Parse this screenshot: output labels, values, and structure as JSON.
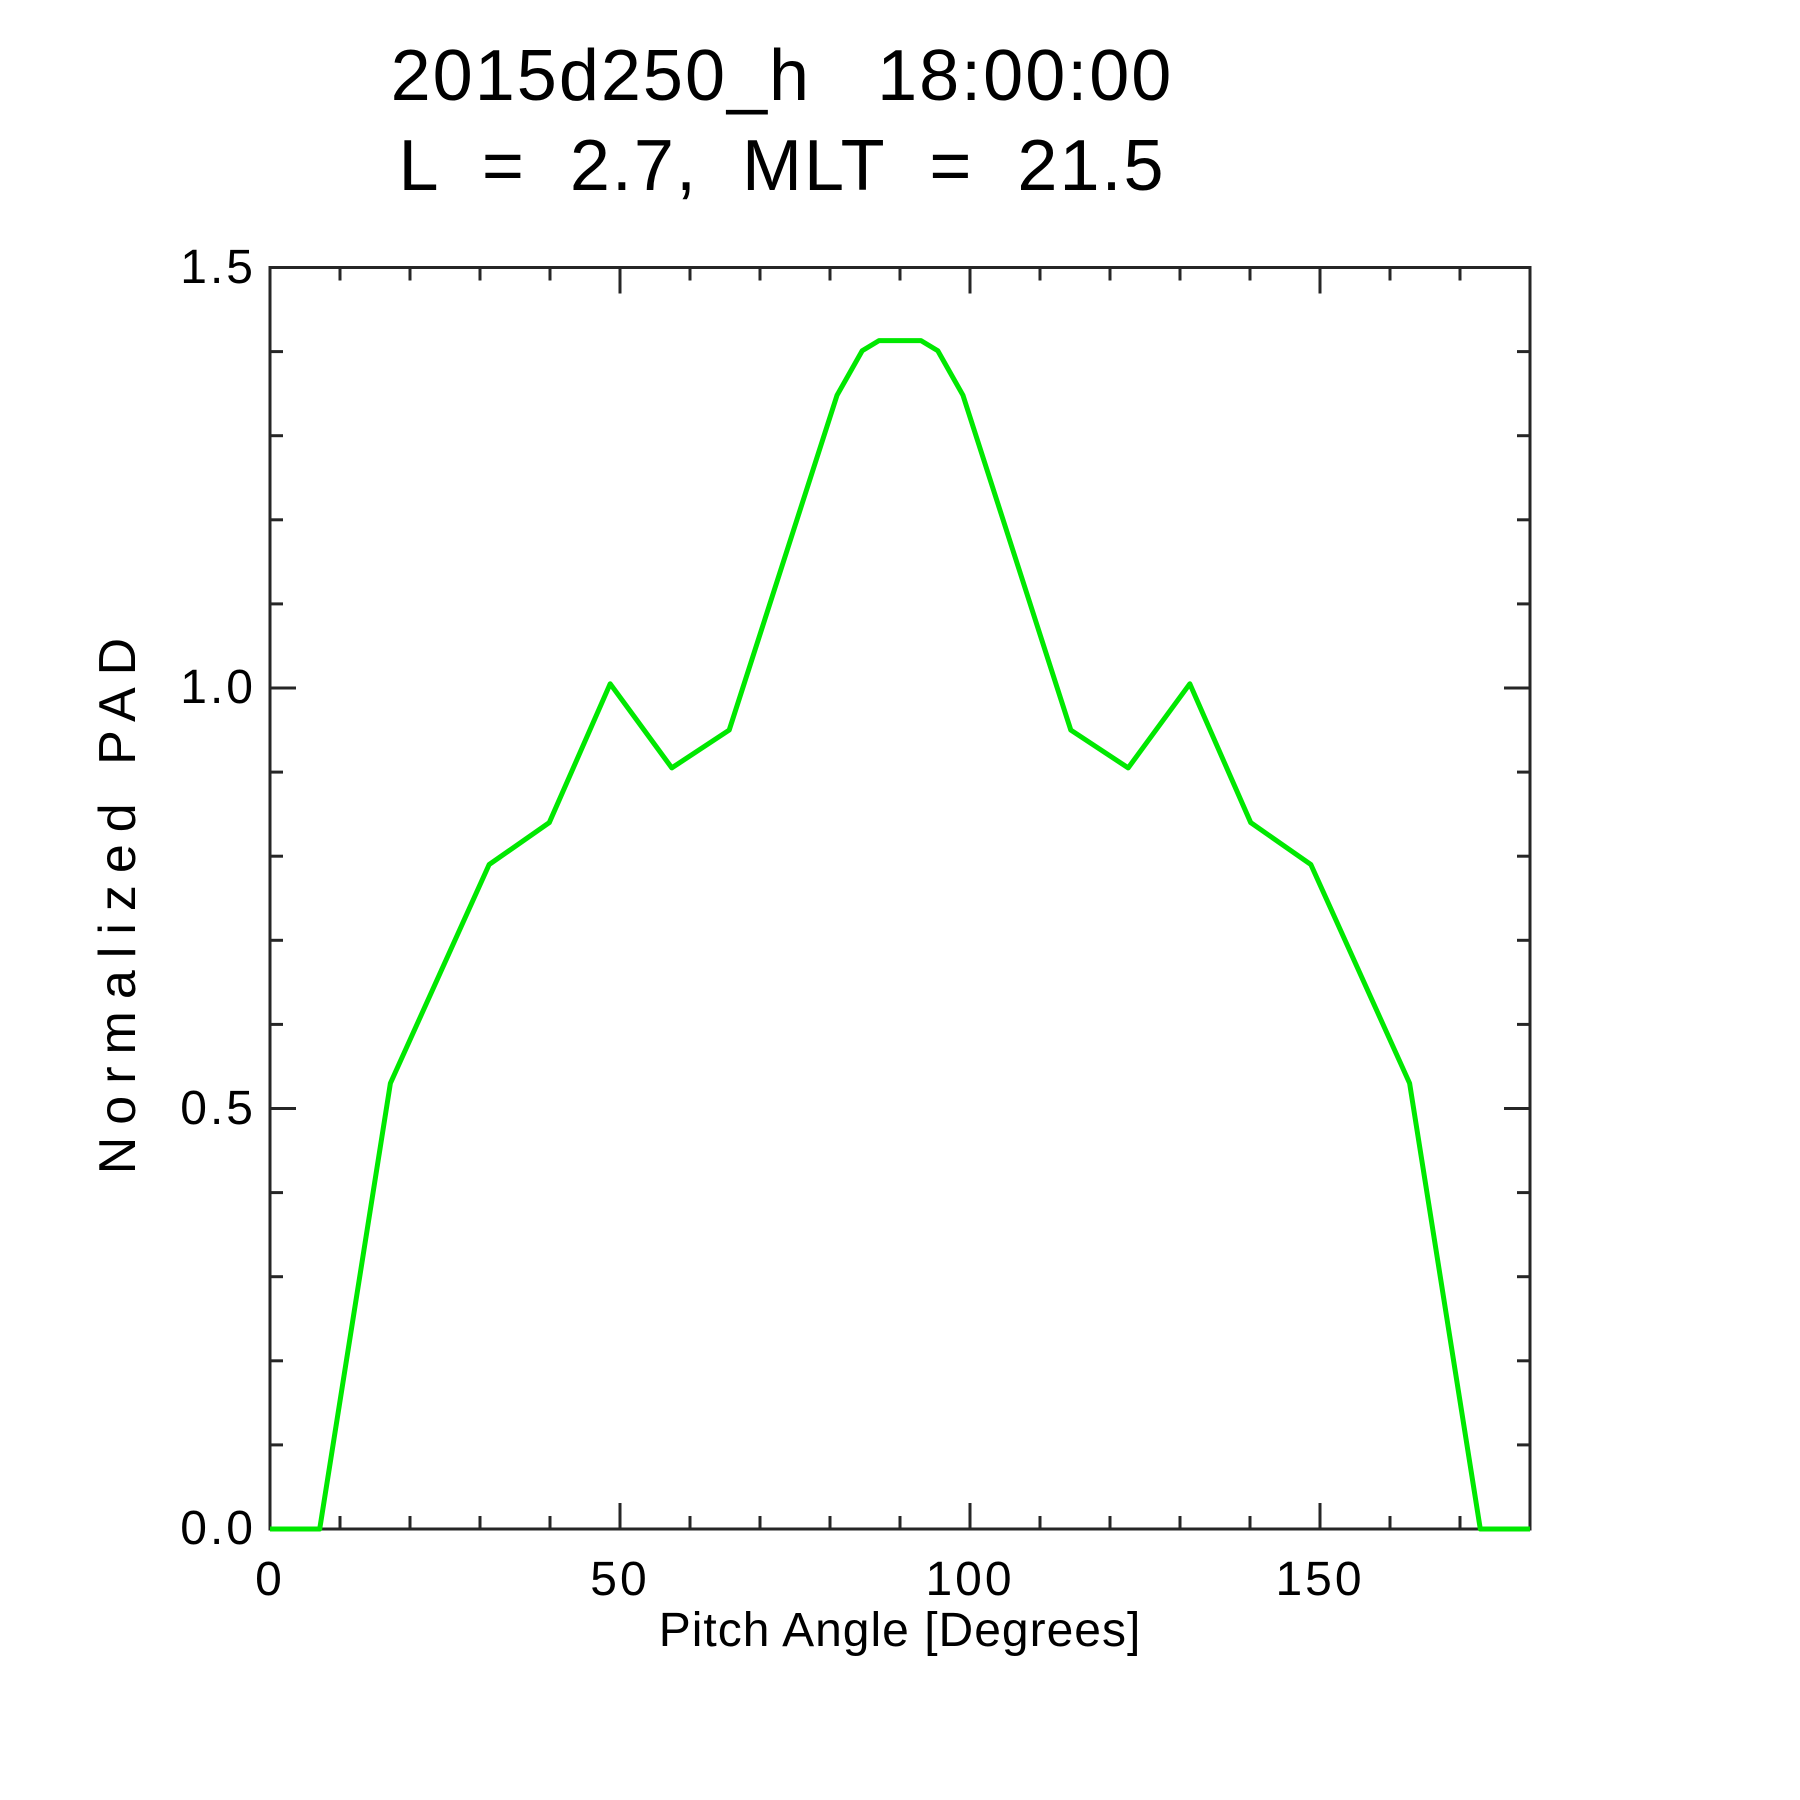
{
  "page": {
    "background_color": "#ffffff",
    "text_color": "#000000"
  },
  "header": {
    "title_display": "2015d250_h   18:00:00",
    "subtitle_display": "L  =  2.7,  MLT  =  21.5"
  },
  "chart_data": {
    "type": "line",
    "title": "2015d250_h  18:00:00",
    "subtitle": "L = 2.7, MLT = 21.5",
    "xlabel": "Pitch Angle [Degrees]",
    "ylabel": "Normalized PAD",
    "xlim": [
      0,
      180
    ],
    "ylim": [
      0.0,
      1.5
    ],
    "x_major_ticks": [
      0,
      50,
      100,
      150
    ],
    "x_tick_labels": [
      "0",
      "50",
      "100",
      "150"
    ],
    "x_minor_step": 10,
    "y_major_ticks": [
      0.0,
      0.5,
      1.0,
      1.5
    ],
    "y_tick_labels": [
      "0.0",
      "0.5",
      "1.0",
      "1.5"
    ],
    "y_minor_step": 0.1,
    "grid": false,
    "legend": "none",
    "frame_color": "#262626",
    "series": [
      {
        "name": "normalized-pad",
        "color": "#00e800",
        "x": [
          0,
          7.1,
          17.2,
          31.3,
          39.9,
          48.6,
          57.4,
          65.6,
          81.0,
          84.6,
          87.0,
          93.0,
          95.4,
          99.0,
          114.4,
          122.6,
          131.4,
          140.1,
          148.7,
          162.8,
          172.9,
          180
        ],
        "y": [
          0,
          0,
          0.53,
          0.79,
          0.84,
          1.005,
          0.905,
          0.95,
          1.348,
          1.401,
          1.413,
          1.413,
          1.401,
          1.348,
          0.95,
          0.905,
          1.005,
          0.84,
          0.79,
          0.53,
          0,
          0
        ]
      }
    ]
  }
}
